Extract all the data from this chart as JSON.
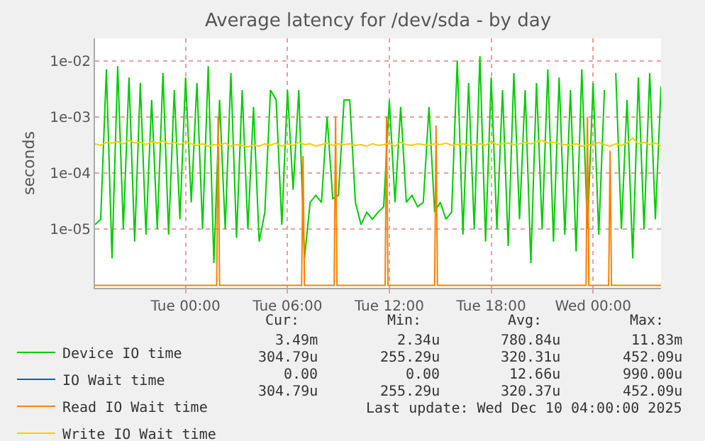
{
  "chart_data": {
    "type": "line",
    "title": "Average latency for /dev/sda - by day",
    "ylabel": "seconds",
    "log": "y",
    "grid": true,
    "legend": "bottom left",
    "marker": "none",
    "line_style": "solid",
    "xlim": [
      "2025-12-08T18:40",
      "2025-12-10T04:00"
    ],
    "xticks": [
      {
        "value": "2025-12-09T00:00",
        "label": "Tue 00:00"
      },
      {
        "value": "2025-12-09T06:00",
        "label": "Tue 06:00"
      },
      {
        "value": "2025-12-09T12:00",
        "label": "Tue 12:00"
      },
      {
        "value": "2025-12-09T18:00",
        "label": "Tue 18:00"
      },
      {
        "value": "2025-12-10T00:00",
        "label": "Wed 00:00"
      }
    ],
    "ylim": [
      9e-07,
      0.025
    ],
    "yticks": [
      {
        "value": 1e-05,
        "label": "1e-05"
      },
      {
        "value": 0.0001,
        "label": "1e-04"
      },
      {
        "value": 0.001,
        "label": "1e-03"
      },
      {
        "value": 0.01,
        "label": "1e-02"
      }
    ],
    "x": [
      "2025-12-08T18:40",
      "2025-12-08T19:00",
      "2025-12-08T19:20",
      "2025-12-08T19:40",
      "2025-12-08T20:00",
      "2025-12-08T20:20",
      "2025-12-08T20:40",
      "2025-12-08T21:00",
      "2025-12-08T21:20",
      "2025-12-08T21:40",
      "2025-12-08T22:00",
      "2025-12-08T22:20",
      "2025-12-08T22:40",
      "2025-12-08T23:00",
      "2025-12-08T23:20",
      "2025-12-08T23:40",
      "2025-12-09T00:00",
      "2025-12-09T00:20",
      "2025-12-09T00:40",
      "2025-12-09T01:00",
      "2025-12-09T01:20",
      "2025-12-09T01:40",
      "2025-12-09T02:00",
      "2025-12-09T02:20",
      "2025-12-09T02:40",
      "2025-12-09T03:00",
      "2025-12-09T03:20",
      "2025-12-09T03:40",
      "2025-12-09T04:00",
      "2025-12-09T04:20",
      "2025-12-09T04:40",
      "2025-12-09T05:00",
      "2025-12-09T05:20",
      "2025-12-09T05:40",
      "2025-12-09T06:00",
      "2025-12-09T06:20",
      "2025-12-09T06:40",
      "2025-12-09T07:00",
      "2025-12-09T07:20",
      "2025-12-09T07:40",
      "2025-12-09T08:00",
      "2025-12-09T08:20",
      "2025-12-09T08:40",
      "2025-12-09T09:00",
      "2025-12-09T09:20",
      "2025-12-09T09:40",
      "2025-12-09T10:00",
      "2025-12-09T10:20",
      "2025-12-09T10:40",
      "2025-12-09T11:00",
      "2025-12-09T11:20",
      "2025-12-09T11:40",
      "2025-12-09T12:00",
      "2025-12-09T12:20",
      "2025-12-09T12:40",
      "2025-12-09T13:00",
      "2025-12-09T13:20",
      "2025-12-09T13:40",
      "2025-12-09T14:00",
      "2025-12-09T14:20",
      "2025-12-09T14:40",
      "2025-12-09T15:00",
      "2025-12-09T15:20",
      "2025-12-09T15:40",
      "2025-12-09T16:00",
      "2025-12-09T16:20",
      "2025-12-09T16:40",
      "2025-12-09T17:00",
      "2025-12-09T17:20",
      "2025-12-09T17:40",
      "2025-12-09T18:00",
      "2025-12-09T18:20",
      "2025-12-09T18:40",
      "2025-12-09T19:00",
      "2025-12-09T19:20",
      "2025-12-09T19:40",
      "2025-12-09T20:00",
      "2025-12-09T20:20",
      "2025-12-09T20:40",
      "2025-12-09T21:00",
      "2025-12-09T21:20",
      "2025-12-09T21:40",
      "2025-12-09T22:00",
      "2025-12-09T22:20",
      "2025-12-09T22:40",
      "2025-12-09T23:00",
      "2025-12-09T23:20",
      "2025-12-09T23:40",
      "2025-12-10T00:00",
      "2025-12-10T00:20",
      "2025-12-10T00:40",
      "2025-12-10T01:00",
      "2025-12-10T01:20",
      "2025-12-10T01:40",
      "2025-12-10T02:00",
      "2025-12-10T02:20",
      "2025-12-10T02:40",
      "2025-12-10T03:00",
      "2025-12-10T03:20",
      "2025-12-10T03:40",
      "2025-12-10T04:00"
    ],
    "series": [
      {
        "name": "Device IO time",
        "color": "#00cc00",
        "values": [
          1.2e-05,
          1.5e-05,
          0.007,
          3e-06,
          0.008,
          1e-05,
          0.005,
          6e-06,
          0.004,
          8e-06,
          0.002,
          1e-05,
          0.006,
          8e-06,
          0.003,
          1.5e-05,
          0.005,
          3e-05,
          0.004,
          1e-05,
          0.008,
          2.5e-06,
          0.002,
          1e-05,
          0.006,
          7e-06,
          0.003,
          1e-05,
          0.0015,
          6e-06,
          2e-05,
          0.003,
          0.002,
          1.2e-05,
          0.003,
          5e-05,
          0.003,
          3e-06,
          3e-05,
          4e-05,
          3e-05,
          0.001,
          3.5e-05,
          4e-05,
          0.002,
          0.002,
          3e-05,
          1.2e-05,
          2e-05,
          1.5e-05,
          2e-05,
          2.5e-05,
          0.002,
          3e-05,
          0.0015,
          3e-05,
          4e-05,
          2.5e-05,
          3e-05,
          0.0015,
          2e-05,
          3e-05,
          1.5e-05,
          2e-05,
          0.01,
          8e-06,
          0.004,
          1e-05,
          0.012,
          6e-06,
          0.005,
          1e-05,
          0.003,
          5e-06,
          0.006,
          1.5e-05,
          0.003,
          2.5e-06,
          0.004,
          1e-05,
          0.007,
          6e-06,
          0.005,
          8e-06,
          0.003,
          4e-06,
          0.007,
          1e-05,
          0.004,
          8e-06,
          0.003,
          null,
          0.006,
          1e-05,
          0.002,
          3e-06,
          0.005,
          1e-05,
          0.006,
          1.5e-05,
          0.0035
        ]
      },
      {
        "name": "IO Wait time",
        "color": "#0066b3",
        "values": [
          null,
          null,
          null,
          null,
          null,
          null,
          null,
          null,
          null,
          null,
          null,
          null,
          null,
          null,
          null,
          null,
          null,
          null,
          null,
          null,
          null,
          null,
          null,
          null,
          null,
          null,
          null,
          null,
          null,
          null,
          null,
          null,
          null,
          null,
          null,
          null,
          null,
          null,
          null,
          null,
          null,
          null,
          null,
          null,
          null,
          null,
          null,
          null,
          null,
          null,
          null,
          null,
          null,
          null,
          null,
          null,
          null,
          null,
          null,
          null,
          null,
          null,
          null,
          null,
          null,
          null,
          null,
          null,
          null,
          null,
          null,
          null,
          null,
          null,
          null,
          null,
          null,
          null,
          null,
          null,
          null,
          null,
          null,
          null,
          null,
          null,
          null,
          null,
          null,
          null,
          null,
          null,
          null,
          null,
          null,
          null,
          null,
          null,
          null,
          null,
          null
        ]
      },
      {
        "name": "Read IO Wait time",
        "color": "#ff8000",
        "x": [
          "2025-12-08T18:40",
          "2025-12-09T01:50",
          "2025-12-09T01:55",
          "2025-12-09T02:00",
          "2025-12-09T06:50",
          "2025-12-09T06:55",
          "2025-12-09T07:00",
          "2025-12-09T08:45",
          "2025-12-09T08:50",
          "2025-12-09T08:55",
          "2025-12-09T11:45",
          "2025-12-09T11:50",
          "2025-12-09T11:55",
          "2025-12-09T14:40",
          "2025-12-09T14:45",
          "2025-12-09T14:50",
          "2025-12-09T23:35",
          "2025-12-09T23:40",
          "2025-12-09T23:45",
          "2025-12-10T00:55",
          "2025-12-10T01:00",
          "2025-12-10T01:05",
          "2025-12-10T04:00"
        ],
        "values": [
          1e-06,
          1e-06,
          0.001,
          1e-06,
          1e-06,
          0.0002,
          1e-06,
          1e-06,
          0.001,
          1e-06,
          1e-06,
          0.001,
          1e-06,
          1e-06,
          0.0007,
          1e-06,
          1e-06,
          0.001,
          1e-06,
          1e-06,
          0.00025,
          1e-06,
          1e-06
        ]
      },
      {
        "name": "Write IO Wait time",
        "color": "#ffcc00",
        "values": [
          0.00033,
          0.00031,
          0.00035,
          0.00034,
          0.00036,
          0.00033,
          0.00038,
          0.00034,
          0.00035,
          0.00032,
          0.00036,
          0.00034,
          0.00037,
          0.00033,
          0.00035,
          0.00032,
          0.00036,
          0.00033,
          0.00031,
          0.00033,
          0.0003,
          0.00032,
          0.00031,
          0.00034,
          0.0003,
          0.00032,
          0.00031,
          0.00029,
          0.00032,
          0.0003,
          0.00033,
          0.00031,
          0.00034,
          0.0003,
          0.00033,
          0.00031,
          0.00035,
          0.00032,
          0.00033,
          0.0003,
          0.00032,
          0.00034,
          0.00031,
          0.00033,
          0.00032,
          0.00033,
          0.00031,
          0.00032,
          0.0003,
          0.00033,
          0.00031,
          0.00032,
          0.00034,
          0.0003,
          0.00035,
          0.00032,
          0.00031,
          0.00033,
          0.00032,
          0.00031,
          0.00033,
          0.00032,
          0.00034,
          0.00031,
          0.00032,
          0.00033,
          0.00031,
          0.00032,
          0.00033,
          0.00031,
          0.00036,
          0.00032,
          0.00033,
          0.00034,
          0.00032,
          0.00033,
          0.00035,
          0.00033,
          0.00036,
          0.00038,
          0.00034,
          0.00035,
          0.00033,
          0.00032,
          0.00031,
          0.00033,
          0.0003,
          0.00032,
          0.00031,
          0.00035,
          0.00032,
          0.0003,
          0.00033,
          0.00031,
          0.00034,
          0.00042,
          0.00033,
          0.00035,
          0.00032,
          0.00034,
          0.000305
        ]
      }
    ],
    "annotations": [
      "Cur:",
      "Min:",
      "Avg:",
      "Max:",
      "3.49m",
      "2.34u",
      "780.84u",
      "11.83m",
      "304.79u",
      "255.29u",
      "320.31u",
      "452.09u",
      "0.00",
      "0.00",
      "12.66u",
      "990.00u",
      "304.79u",
      "255.29u",
      "320.37u",
      "452.09u",
      "Last update: Wed Dec 10 04:00:00 2025"
    ]
  }
}
